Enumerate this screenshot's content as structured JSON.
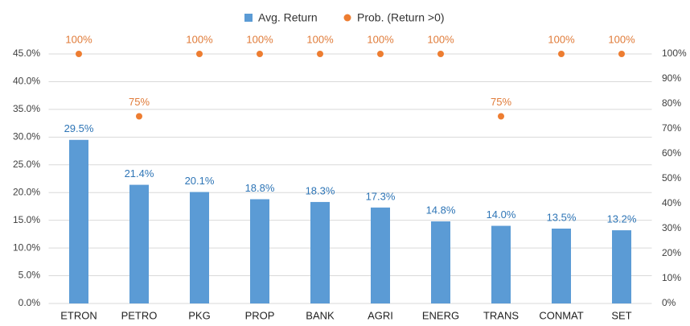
{
  "chart_data": {
    "type": "bar",
    "categories": [
      "ETRON",
      "PETRO",
      "PKG",
      "PROP",
      "BANK",
      "AGRI",
      "ENERG",
      "TRANS",
      "CONMAT",
      "SET"
    ],
    "series": [
      {
        "name": "Avg. Return",
        "type": "bar",
        "color": "#5b9bd5",
        "label_color": "#2e75b6",
        "values": [
          29.5,
          21.4,
          20.1,
          18.8,
          18.3,
          17.3,
          14.8,
          14.0,
          13.5,
          13.2
        ],
        "value_labels": [
          "29.5%",
          "21.4%",
          "20.1%",
          "18.8%",
          "18.3%",
          "17.3%",
          "14.8%",
          "14.0%",
          "13.5%",
          "13.2%"
        ]
      },
      {
        "name": "Prob. (Return >0)",
        "type": "scatter",
        "axis": "y2",
        "color": "#ed7d31",
        "label_color": "#e07b39",
        "values": [
          100,
          75,
          100,
          100,
          100,
          100,
          100,
          75,
          100,
          100
        ],
        "value_labels": [
          "100%",
          "75%",
          "100%",
          "100%",
          "100%",
          "100%",
          "100%",
          "75%",
          "100%",
          "100%"
        ]
      }
    ],
    "ylim": [
      0,
      45
    ],
    "yticks": [
      {
        "value": 0,
        "label": "0.0%"
      },
      {
        "value": 5,
        "label": "5.0%"
      },
      {
        "value": 10,
        "label": "10.0%"
      },
      {
        "value": 15,
        "label": "15.0%"
      },
      {
        "value": 20,
        "label": "20.0%"
      },
      {
        "value": 25,
        "label": "25.0%"
      },
      {
        "value": 30,
        "label": "30.0%"
      },
      {
        "value": 35,
        "label": "35.0%"
      },
      {
        "value": 40,
        "label": "40.0%"
      },
      {
        "value": 45,
        "label": "45.0%"
      }
    ],
    "y2lim": [
      0,
      100
    ],
    "y2ticks": [
      {
        "value": 0,
        "label": "0%"
      },
      {
        "value": 10,
        "label": "10%"
      },
      {
        "value": 20,
        "label": "20%"
      },
      {
        "value": 30,
        "label": "30%"
      },
      {
        "value": 40,
        "label": "40%"
      },
      {
        "value": 50,
        "label": "50%"
      },
      {
        "value": 60,
        "label": "60%"
      },
      {
        "value": 70,
        "label": "70%"
      },
      {
        "value": 80,
        "label": "80%"
      },
      {
        "value": 90,
        "label": "90%"
      },
      {
        "value": 100,
        "label": "100%"
      }
    ],
    "grid": true,
    "legend": "top"
  }
}
